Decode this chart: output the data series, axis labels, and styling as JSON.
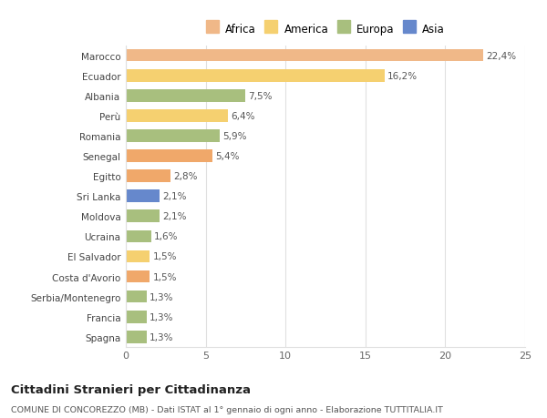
{
  "countries": [
    "Spagna",
    "Francia",
    "Serbia/Montenegro",
    "Costa d'Avorio",
    "El Salvador",
    "Ucraina",
    "Moldova",
    "Sri Lanka",
    "Egitto",
    "Senegal",
    "Romania",
    "Perù",
    "Albania",
    "Ecuador",
    "Marocco"
  ],
  "values": [
    1.3,
    1.3,
    1.3,
    1.5,
    1.5,
    1.6,
    2.1,
    2.1,
    2.8,
    5.4,
    5.9,
    6.4,
    7.5,
    16.2,
    22.4
  ],
  "pct_labels": [
    "1,3%",
    "1,3%",
    "1,3%",
    "1,5%",
    "1,5%",
    "1,6%",
    "2,1%",
    "2,1%",
    "2,8%",
    "5,4%",
    "5,9%",
    "6,4%",
    "7,5%",
    "16,2%",
    "22,4%"
  ],
  "colors": [
    "#a8bf7e",
    "#a8bf7e",
    "#a8bf7e",
    "#f0a86a",
    "#f5d070",
    "#a8bf7e",
    "#a8bf7e",
    "#6688cc",
    "#f0a86a",
    "#f0a86a",
    "#a8bf7e",
    "#f5d070",
    "#a8bf7e",
    "#f5d070",
    "#f0b888"
  ],
  "legend_labels": [
    "Africa",
    "America",
    "Europa",
    "Asia"
  ],
  "legend_colors": [
    "#f0b888",
    "#f5d070",
    "#a8bf7e",
    "#6688cc"
  ],
  "title": "Cittadini Stranieri per Cittadinanza",
  "subtitle": "COMUNE DI CONCOREZZO (MB) - Dati ISTAT al 1° gennaio di ogni anno - Elaborazione TUTTITALIA.IT",
  "xlim": [
    0,
    25
  ],
  "xticks": [
    0,
    5,
    10,
    15,
    20,
    25
  ],
  "bg_color": "#ffffff",
  "grid_color": "#e0e0e0"
}
